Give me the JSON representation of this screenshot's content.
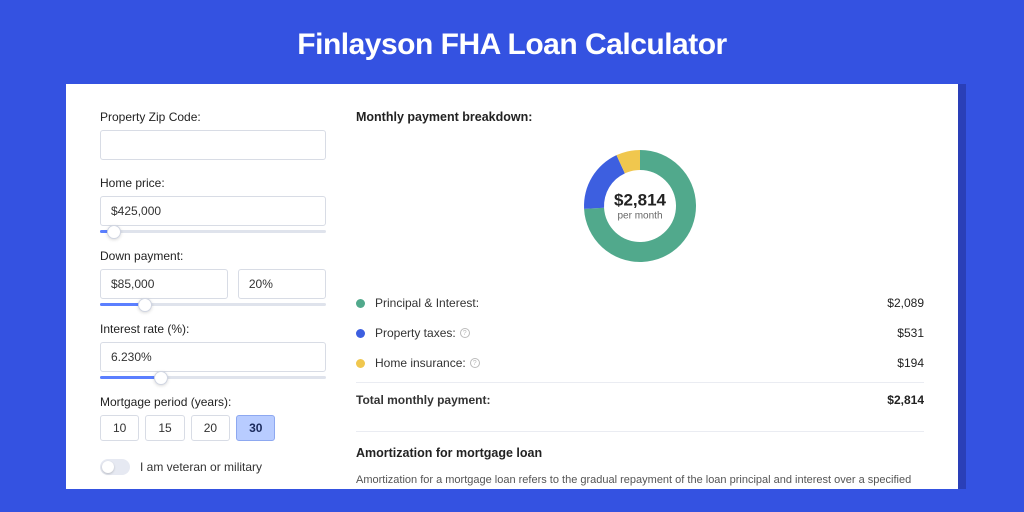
{
  "page_title": "Finlayson FHA Loan Calculator",
  "left": {
    "zip": {
      "label": "Property Zip Code:",
      "value": ""
    },
    "home_price": {
      "label": "Home price:",
      "value": "$425,000",
      "slider_pct": 6
    },
    "down_payment": {
      "label": "Down payment:",
      "amount": "$85,000",
      "percent": "20%",
      "slider_pct": 20
    },
    "interest_rate": {
      "label": "Interest rate (%):",
      "value": "6.230%",
      "slider_pct": 27
    },
    "mortgage_period": {
      "label": "Mortgage period (years):",
      "options": [
        "10",
        "15",
        "20",
        "30"
      ],
      "selected": "30"
    },
    "veteran": {
      "label": "I am veteran or military",
      "on": false
    }
  },
  "right": {
    "header": "Monthly payment breakdown:",
    "donut": {
      "amount": "$2,814",
      "sub": "per month",
      "slices": [
        {
          "color": "#51a98c",
          "pct": 74.2
        },
        {
          "color": "#3d5fe0",
          "pct": 18.9
        },
        {
          "color": "#f0c74e",
          "pct": 6.9
        }
      ]
    },
    "rows": [
      {
        "dot": "#51a98c",
        "label": "Principal & Interest:",
        "info": false,
        "value": "$2,089"
      },
      {
        "dot": "#3d5fe0",
        "label": "Property taxes:",
        "info": true,
        "value": "$531"
      },
      {
        "dot": "#f0c74e",
        "label": "Home insurance:",
        "info": true,
        "value": "$194"
      }
    ],
    "total": {
      "label": "Total monthly payment:",
      "value": "$2,814"
    },
    "amort": {
      "header": "Amortization for mortgage loan",
      "text": "Amortization for a mortgage loan refers to the gradual repayment of the loan principal and interest over a specified"
    }
  }
}
